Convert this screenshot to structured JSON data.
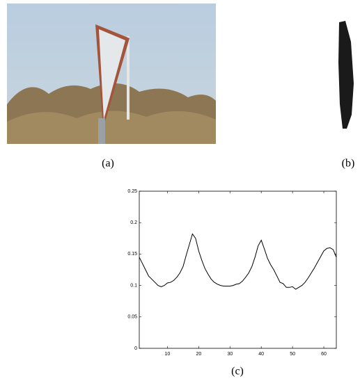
{
  "captions": [
    "(a)",
    "(b)",
    "(c)"
  ],
  "chart_data": {
    "type": "line",
    "x": [
      1,
      2,
      3,
      4,
      5,
      6,
      7,
      8,
      9,
      10,
      11,
      12,
      13,
      14,
      15,
      16,
      17,
      18,
      19,
      20,
      21,
      22,
      23,
      24,
      25,
      26,
      27,
      28,
      29,
      30,
      31,
      32,
      33,
      34,
      35,
      36,
      37,
      38,
      39,
      40,
      41,
      42,
      43,
      44,
      45,
      46,
      47,
      48,
      49,
      50,
      51,
      52,
      53,
      54,
      55,
      56,
      57,
      58,
      59,
      60,
      61,
      62,
      63,
      64
    ],
    "series": [
      {
        "color": "#000000",
        "values": [
          0.145,
          0.135,
          0.125,
          0.115,
          0.11,
          0.105,
          0.1,
          0.098,
          0.1,
          0.104,
          0.105,
          0.108,
          0.113,
          0.12,
          0.13,
          0.148,
          0.165,
          0.182,
          0.175,
          0.155,
          0.14,
          0.127,
          0.118,
          0.11,
          0.105,
          0.102,
          0.1,
          0.099,
          0.099,
          0.099,
          0.1,
          0.102,
          0.103,
          0.107,
          0.113,
          0.12,
          0.13,
          0.145,
          0.163,
          0.172,
          0.158,
          0.143,
          0.133,
          0.125,
          0.115,
          0.105,
          0.103,
          0.097,
          0.097,
          0.098,
          0.094,
          0.097,
          0.1,
          0.105,
          0.112,
          0.12,
          0.128,
          0.137,
          0.146,
          0.155,
          0.159,
          0.16,
          0.157,
          0.145
        ]
      }
    ],
    "xlim": [
      1,
      64
    ],
    "ylim": [
      0,
      0.25
    ],
    "xticks": [
      10,
      20,
      30,
      40,
      50,
      60
    ],
    "yticks": [
      0,
      0.05,
      0.1,
      0.15,
      0.2,
      0.25
    ]
  }
}
